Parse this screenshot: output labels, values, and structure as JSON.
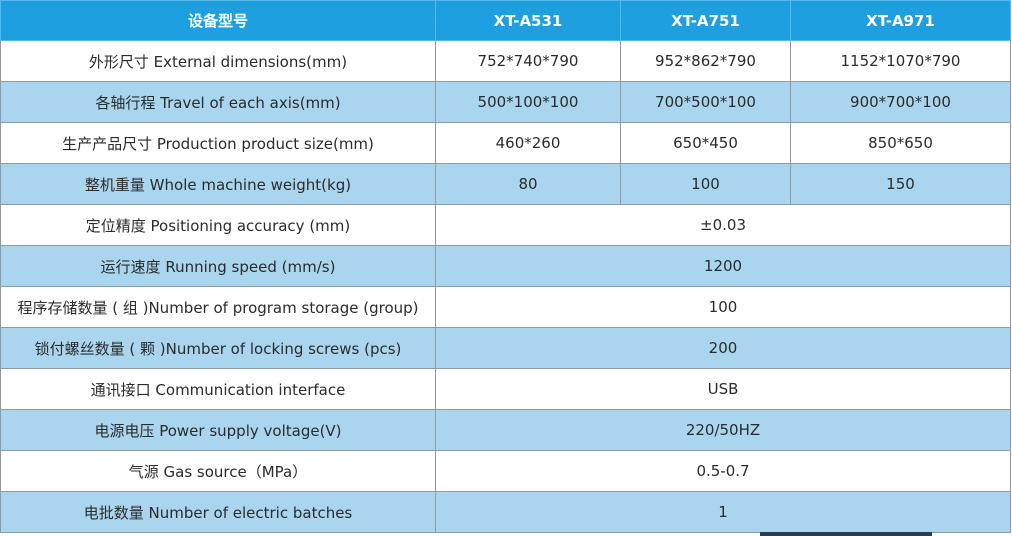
{
  "header": {
    "label": "设备型号",
    "models": [
      "XT-A531",
      "XT-A751",
      "XT-A971"
    ]
  },
  "rows": [
    {
      "label": "外形尺寸 External dimensions(mm)",
      "values": [
        "752*740*790",
        "952*862*790",
        "1152*1070*790"
      ]
    },
    {
      "label": "各轴行程 Travel of each axis(mm)",
      "values": [
        "500*100*100",
        "700*500*100",
        "900*700*100"
      ]
    },
    {
      "label": "生产产品尺寸 Production product size(mm)",
      "values": [
        "460*260",
        "650*450",
        "850*650"
      ]
    },
    {
      "label": "整机重量 Whole machine weight(kg)",
      "values": [
        "80",
        "100",
        "150"
      ]
    },
    {
      "label": "定位精度 Positioning accuracy (mm)",
      "value": "±0.03"
    },
    {
      "label": "运行速度 Running speed (mm/s)",
      "value": "1200"
    },
    {
      "label": "程序存储数量 ( 组 )Number of program storage (group)",
      "value": "100"
    },
    {
      "label": "锁付螺丝数量 ( 颗 )Number of locking screws (pcs)",
      "value": "200"
    },
    {
      "label": "通讯接口 Communication interface",
      "value": "USB"
    },
    {
      "label": "电源电压 Power supply voltage(V)",
      "value": "220/50HZ"
    },
    {
      "label": "气源 Gas source（MPa）",
      "value": "0.5-0.7"
    },
    {
      "label": "电批数量 Number of electric batches",
      "value": "1"
    }
  ],
  "colors": {
    "header_bg": "#1e9fe0",
    "shaded_row_bg": "#a9d6ee",
    "plain_row_bg": "#ffffff",
    "border": "#8f9aa3",
    "text": "#2b2b2b"
  }
}
